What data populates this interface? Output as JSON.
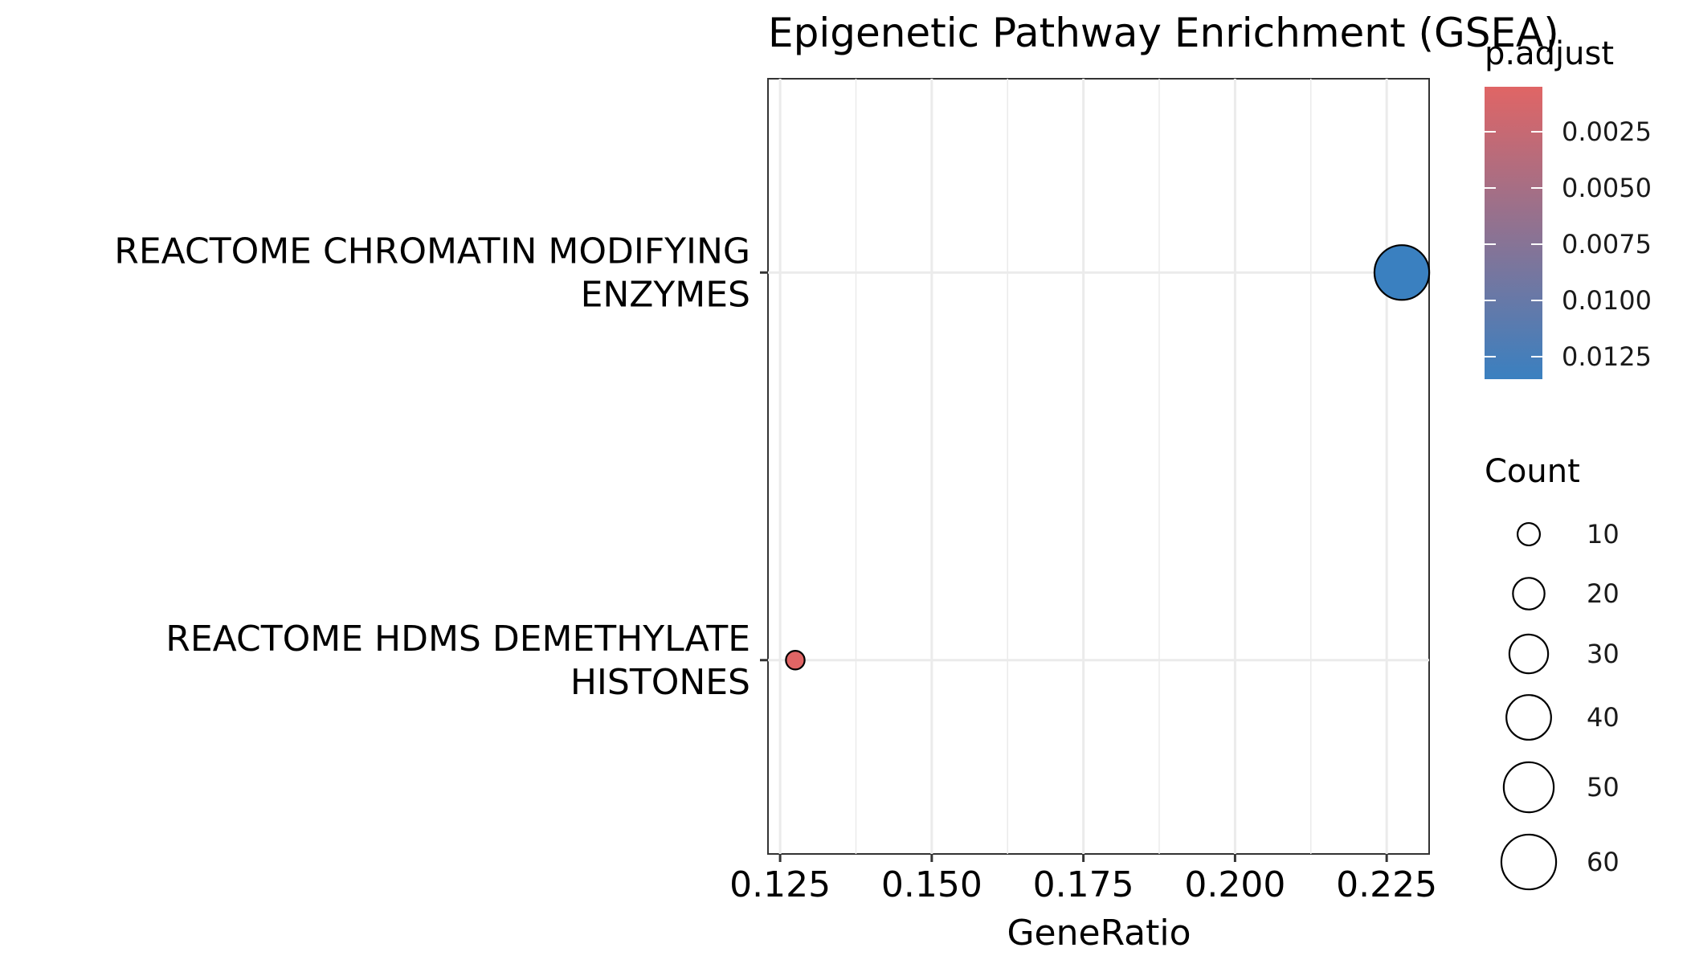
{
  "chart_data": {
    "type": "scatter",
    "title": "Epigenetic Pathway Enrichment (GSEA)",
    "xlabel": "GeneRatio",
    "ylabel": "",
    "xlim": [
      0.123,
      0.232
    ],
    "x_ticks": [
      0.125,
      0.15,
      0.175,
      0.2,
      0.225
    ],
    "x_tick_labels": [
      "0.125",
      "0.150",
      "0.175",
      "0.200",
      "0.225"
    ],
    "categories": [
      [
        "REACTOME CHROMATIN MODIFYING",
        "ENZYMES"
      ],
      [
        "REACTOME HDMS DEMETHYLATE",
        "HISTONES"
      ]
    ],
    "points": [
      {
        "pathway": "REACTOME CHROMATIN MODIFYING ENZYMES",
        "gene_ratio": 0.2275,
        "count": 60,
        "p_adjust": 0.0135
      },
      {
        "pathway": "REACTOME HDMS DEMETHYLATE HISTONES",
        "gene_ratio": 0.1275,
        "count": 7,
        "p_adjust": 0.0005
      }
    ],
    "color_scale": {
      "title": "p.adjust",
      "low_color": "#e06565",
      "high_color": "#3a80c0",
      "range": [
        0.0005,
        0.0135
      ],
      "ticks": [
        0.0025,
        0.005,
        0.0075,
        0.01,
        0.0125
      ],
      "tick_labels": [
        "0.0025",
        "0.0050",
        "0.0075",
        "0.0100",
        "0.0125"
      ]
    },
    "size_scale": {
      "title": "Count",
      "range": [
        7,
        60
      ],
      "values": [
        10,
        20,
        30,
        40,
        50,
        60
      ],
      "labels": [
        "10",
        "20",
        "30",
        "40",
        "50",
        "60"
      ]
    },
    "grid": true,
    "legend_position": "right"
  }
}
